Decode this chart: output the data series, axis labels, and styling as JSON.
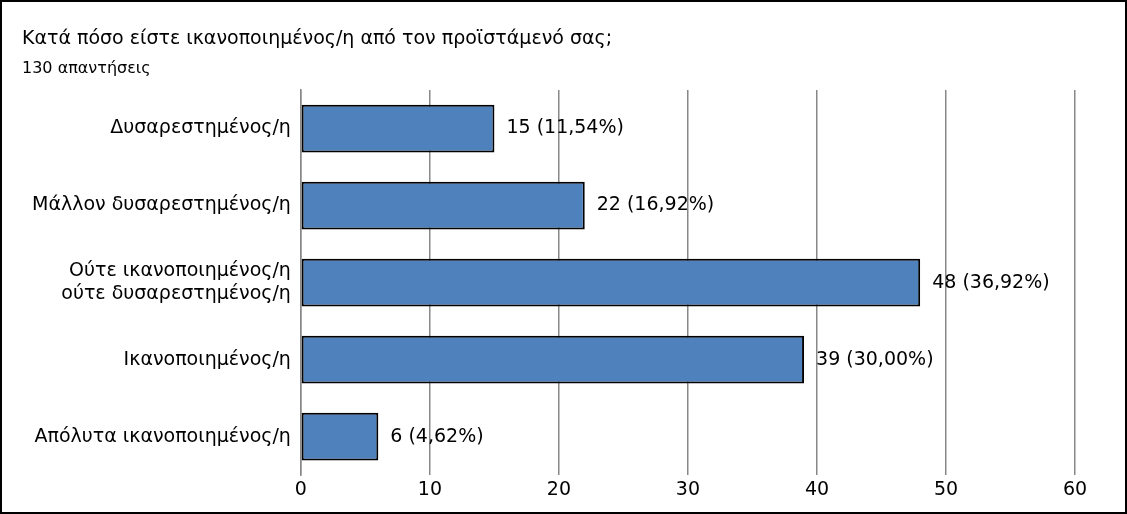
{
  "chart_data": {
    "type": "bar",
    "orientation": "horizontal",
    "title": "Κατά πόσο είστε ικανοποιημένος/η από τον προϊστάμενό σας;",
    "subtitle": "130 απαντήσεις",
    "categories": [
      "Δυσαρεστημένος/η",
      "Μάλλον δυσαρεστημένος/η",
      "Ούτε ικανοποιημένος/η ούτε δυσαρεστημένος/η",
      "Ικανοποιημένος/η",
      "Απόλυτα ικανοποιημένος/η"
    ],
    "values": [
      15,
      22,
      48,
      39,
      6
    ],
    "value_labels": [
      "15 (11,54%)",
      "22 (16,92%)",
      "48 (36,92%)",
      "39 (30,00%)",
      "6 (4,62%)"
    ],
    "color": "#4f81bd",
    "xlim": [
      0,
      60
    ],
    "xticks": [
      0,
      10,
      20,
      30,
      40,
      50,
      60
    ],
    "grid": "x",
    "legend": false
  }
}
